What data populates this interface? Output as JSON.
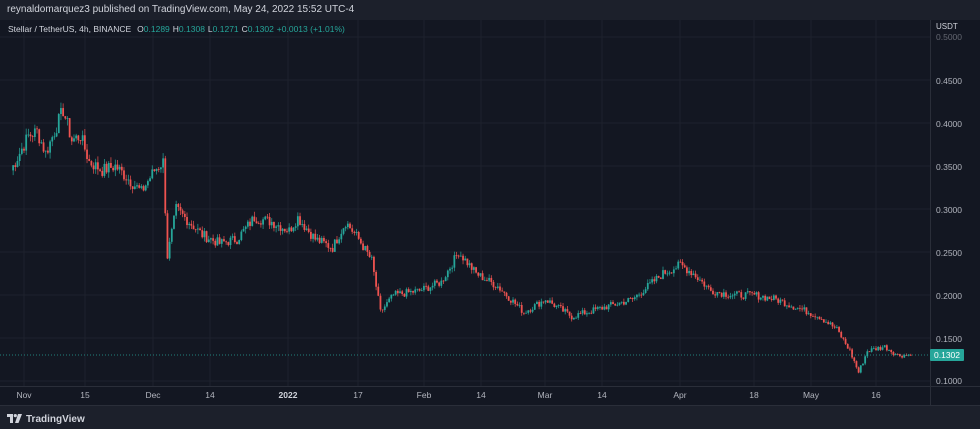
{
  "header": {
    "publish_text": "reynaldomarquez3 published on TradingView.com, May 24, 2022 15:52 UTC-4"
  },
  "legend": {
    "symbol": "Stellar / TetherUS, 4h, BINANCE",
    "open_label": "O",
    "open_value": "0.1289",
    "high_label": "H",
    "high_value": "0.1308",
    "low_label": "L",
    "low_value": "0.1271",
    "close_label": "C",
    "close_value": "0.1302",
    "change": "+0.0013 (+1.01%)"
  },
  "price_axis": {
    "unit": "USDT",
    "ticks": [
      "0.5000",
      "0.4500",
      "0.4000",
      "0.3500",
      "0.3000",
      "0.2500",
      "0.2000",
      "0.1500",
      "0.1000"
    ]
  },
  "time_axis": {
    "ticks": [
      "Nov",
      "15",
      "Dec",
      "14",
      "2022",
      "17",
      "Feb",
      "14",
      "Mar",
      "14",
      "Apr",
      "18",
      "May",
      "16"
    ]
  },
  "current_price": "0.1302",
  "footer": {
    "logo_text": "TradingView",
    "logo_icon": "tradingview-logo-icon"
  },
  "colors": {
    "up": "#26a69a",
    "down": "#ef5350",
    "background": "#131722",
    "grid": "#1e222d"
  },
  "chart_data": {
    "type": "candlestick",
    "title": "Stellar / TetherUS, 4h, BINANCE",
    "ylabel": "USDT",
    "ylim": [
      0.1,
      0.5
    ],
    "grid": true,
    "x_ticks": [
      "Nov",
      "15",
      "Dec",
      "14",
      "2022",
      "17",
      "Feb",
      "14",
      "Mar",
      "14",
      "Apr",
      "18",
      "May",
      "16"
    ],
    "close_path": [
      {
        "x": "Oct 30",
        "y": 0.345
      },
      {
        "x": "Nov 2",
        "y": 0.385
      },
      {
        "x": "Nov 4",
        "y": 0.39
      },
      {
        "x": "Nov 6",
        "y": 0.365
      },
      {
        "x": "Nov 8",
        "y": 0.39
      },
      {
        "x": "Nov 10",
        "y": 0.415
      },
      {
        "x": "Nov 12",
        "y": 0.38
      },
      {
        "x": "Nov 14",
        "y": 0.385
      },
      {
        "x": "Nov 16",
        "y": 0.355
      },
      {
        "x": "Nov 19",
        "y": 0.345
      },
      {
        "x": "Nov 22",
        "y": 0.35
      },
      {
        "x": "Nov 25",
        "y": 0.335
      },
      {
        "x": "Nov 28",
        "y": 0.32
      },
      {
        "x": "Dec 1",
        "y": 0.345
      },
      {
        "x": "Dec 3",
        "y": 0.355
      },
      {
        "x": "Dec 4",
        "y": 0.245
      },
      {
        "x": "Dec 6",
        "y": 0.3
      },
      {
        "x": "Dec 8",
        "y": 0.29
      },
      {
        "x": "Dec 12",
        "y": 0.27
      },
      {
        "x": "Dec 16",
        "y": 0.26
      },
      {
        "x": "Dec 20",
        "y": 0.265
      },
      {
        "x": "Dec 24",
        "y": 0.29
      },
      {
        "x": "Dec 28",
        "y": 0.285
      },
      {
        "x": "Jan 1",
        "y": 0.275
      },
      {
        "x": "Jan 3",
        "y": 0.29
      },
      {
        "x": "Jan 7",
        "y": 0.265
      },
      {
        "x": "Jan 11",
        "y": 0.255
      },
      {
        "x": "Jan 14",
        "y": 0.285
      },
      {
        "x": "Jan 17",
        "y": 0.265
      },
      {
        "x": "Jan 20",
        "y": 0.24
      },
      {
        "x": "Jan 22",
        "y": 0.18
      },
      {
        "x": "Jan 25",
        "y": 0.2
      },
      {
        "x": "Jan 31",
        "y": 0.205
      },
      {
        "x": "Feb 5",
        "y": 0.215
      },
      {
        "x": "Feb 9",
        "y": 0.25
      },
      {
        "x": "Feb 13",
        "y": 0.225
      },
      {
        "x": "Feb 18",
        "y": 0.21
      },
      {
        "x": "Feb 24",
        "y": 0.18
      },
      {
        "x": "Mar 1",
        "y": 0.195
      },
      {
        "x": "Mar 7",
        "y": 0.175
      },
      {
        "x": "Mar 14",
        "y": 0.185
      },
      {
        "x": "Mar 21",
        "y": 0.195
      },
      {
        "x": "Mar 28",
        "y": 0.225
      },
      {
        "x": "Apr 1",
        "y": 0.235
      },
      {
        "x": "Apr 4",
        "y": 0.225
      },
      {
        "x": "Apr 8",
        "y": 0.205
      },
      {
        "x": "Apr 13",
        "y": 0.2
      },
      {
        "x": "Apr 18",
        "y": 0.2
      },
      {
        "x": "Apr 23",
        "y": 0.195
      },
      {
        "x": "Apr 28",
        "y": 0.185
      },
      {
        "x": "May 3",
        "y": 0.175
      },
      {
        "x": "May 7",
        "y": 0.16
      },
      {
        "x": "May 10",
        "y": 0.135
      },
      {
        "x": "May 12",
        "y": 0.11
      },
      {
        "x": "May 14",
        "y": 0.135
      },
      {
        "x": "May 18",
        "y": 0.14
      },
      {
        "x": "May 21",
        "y": 0.13
      },
      {
        "x": "May 24",
        "y": 0.1302
      }
    ],
    "last_price": 0.1302
  }
}
